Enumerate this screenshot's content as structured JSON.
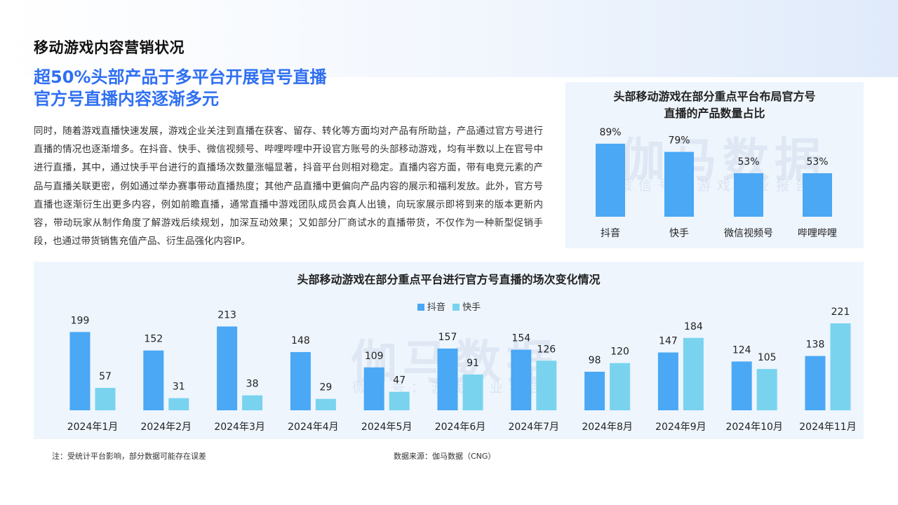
{
  "page": {
    "title": "移动游戏内容营销状况",
    "headline_line1": "超50%头部产品于多平台开展官号直播",
    "headline_line2": "官方号直播内容逐渐多元",
    "body": "同时，随着游戏直播快速发展，游戏企业关注到直播在获客、留存、转化等方面均对产品有所助益，产品通过官方号进行直播的情况也逐渐增多。在抖音、快手、微信视频号、哔哩哔哩中开设官方账号的头部移动游戏，均有半数以上在官号中进行直播，其中，通过快手平台进行的直播场次数量涨幅显著，抖音平台则相对稳定。直播内容方面，带有电竞元素的产品与直播关联更密，例如通过举办赛事带动直播热度；其他产品直播中更偏向产品内容的展示和福利发放。此外，官方号直播也逐渐衍生出更多内容，例如前瞻直播，通常直播中游戏团队成员会真人出镜，向玩家展示即将到来的版本更新内容，带动玩家从制作角度了解游戏后续规划，加深互动效果；又如部分厂商试水的直播带货，不仅作为一种新型促销手段，也通过带货销售充值产品、衍生品强化内容IP。",
    "watermark_big": "伽马数据",
    "watermark_small": "微信号：游戏产业报告",
    "note": "注：受统计平台影响，部分数据可能存在误差",
    "source": "数据来源：伽马数据（CNG）"
  },
  "colors": {
    "douyin": "#4aa8f5",
    "kuaishou": "#79d3ef",
    "headline": "#2f6ff2",
    "panel_bg": "#eef5fd"
  },
  "chart_data": [
    {
      "type": "bar",
      "title_line1": "头部移动游戏在部分重点平台布局官方号",
      "title_line2": "直播的产品数量占比",
      "categories": [
        "抖音",
        "快手",
        "微信视频号",
        "哔哩哔哩"
      ],
      "values": [
        89,
        79,
        53,
        53
      ],
      "value_labels": [
        "89%",
        "79%",
        "53%",
        "53%"
      ],
      "unit": "%",
      "ylim": [
        0,
        100
      ],
      "grid": false,
      "legend": false
    },
    {
      "type": "bar",
      "title": "头部移动游戏在部分重点平台进行官方号直播的场次变化情况",
      "categories": [
        "2024年1月",
        "2024年2月",
        "2024年3月",
        "2024年4月",
        "2024年5月",
        "2024年6月",
        "2024年7月",
        "2024年8月",
        "2024年9月",
        "2024年10月",
        "2024年11月"
      ],
      "series": [
        {
          "name": "抖音",
          "values": [
            199,
            152,
            213,
            148,
            109,
            157,
            154,
            98,
            147,
            124,
            138
          ]
        },
        {
          "name": "快手",
          "values": [
            57,
            31,
            38,
            29,
            47,
            91,
            126,
            120,
            184,
            105,
            221
          ]
        }
      ],
      "ylim": [
        0,
        221
      ],
      "grid": false,
      "legend": "top-center"
    }
  ]
}
